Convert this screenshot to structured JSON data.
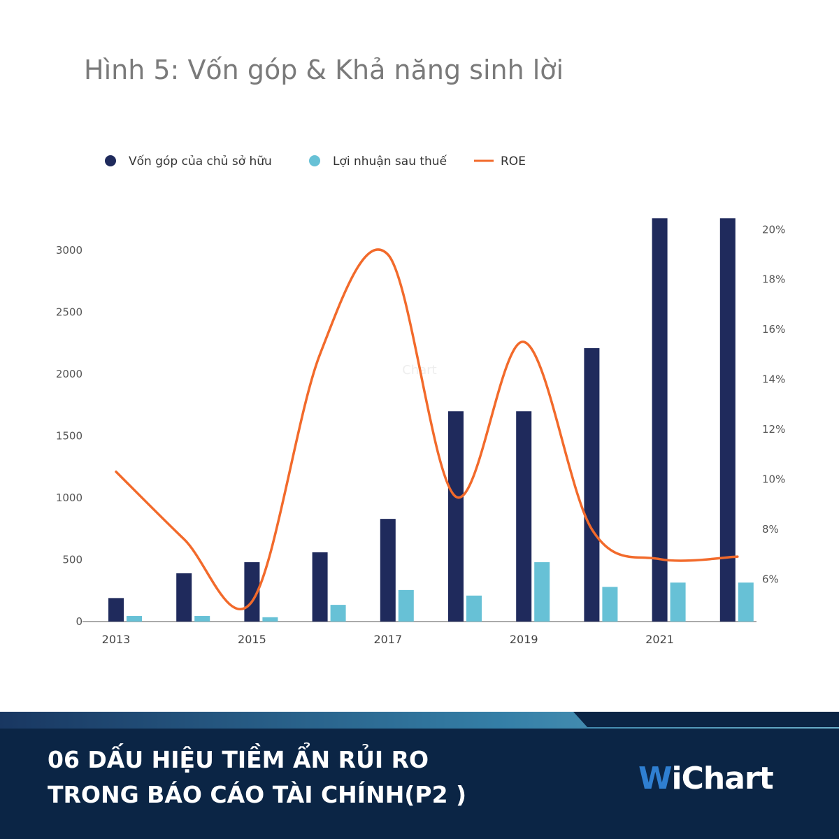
{
  "title": "Hình 5: Vốn góp & Khả năng sinh lời",
  "colors": {
    "capital": "#1f2a5c",
    "profit": "#67c1d6",
    "roe": "#f26a2b",
    "footer_bg": "#0b2545",
    "logo_w": "#2f7fd1"
  },
  "chart_data": {
    "type": "bar",
    "categories": [
      "2013",
      "2014",
      "2015",
      "2016",
      "2017",
      "2018",
      "2019",
      "2020",
      "2021",
      "2022"
    ],
    "x_tick_labels": [
      "2013",
      "",
      "2015",
      "",
      "2017",
      "",
      "2019",
      "",
      "2021",
      ""
    ],
    "series": [
      {
        "name": "Vốn góp của chủ sở hữu",
        "type": "bar",
        "axis": "left",
        "values": [
          190,
          390,
          480,
          560,
          830,
          1700,
          1700,
          2210,
          3260,
          3260
        ]
      },
      {
        "name": "Lợi nhuận sau thuế",
        "type": "bar",
        "axis": "left",
        "values": [
          45,
          45,
          35,
          135,
          255,
          210,
          480,
          280,
          315,
          315
        ]
      },
      {
        "name": "ROE",
        "type": "line",
        "axis": "right",
        "values": [
          10.3,
          7.6,
          5.1,
          15.0,
          19.0,
          9.3,
          15.5,
          8.0,
          6.8,
          6.9
        ]
      }
    ],
    "y_left": {
      "ticks": [
        "0",
        "500",
        "1000",
        "1500",
        "2000",
        "2500",
        "3000"
      ],
      "lim": [
        0,
        3250
      ]
    },
    "y_right": {
      "ticks": [
        "6%",
        "8%",
        "10%",
        "12%",
        "14%",
        "16%",
        "18%",
        "20%"
      ],
      "lim": [
        4.3,
        20.4
      ]
    },
    "legend_position": "top-left",
    "grid": false
  },
  "footer": {
    "headline_line1": "06 DẤU HIỆU TIỀM ẨN RỦI RO",
    "headline_line2": "TRONG BÁO CÁO TÀI CHÍNH(P2 )",
    "logo_w": "W",
    "logo_rest": "iChart"
  }
}
